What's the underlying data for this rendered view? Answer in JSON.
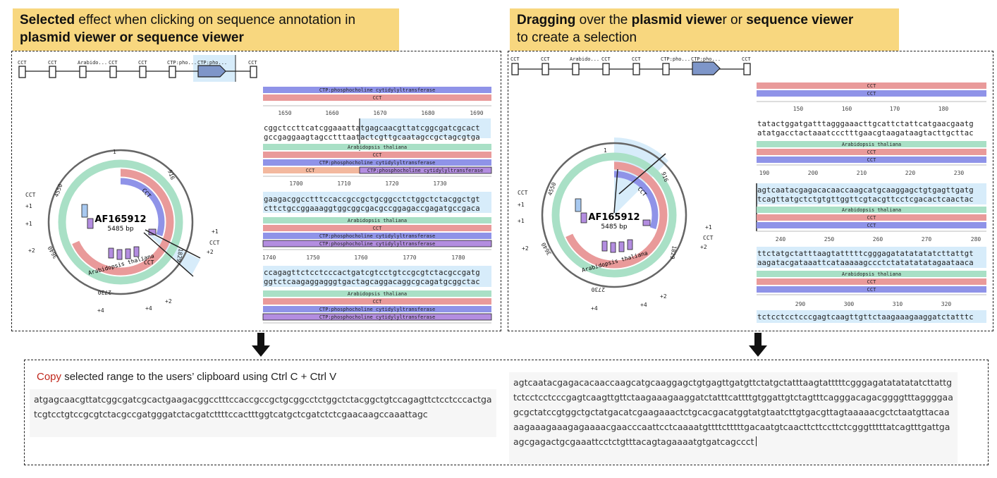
{
  "left_banner": {
    "bold1": "Selected",
    "rest1": " effect when clicking on sequence annotation in",
    "bold2": "plasmid viewer or sequence viewer"
  },
  "right_banner": {
    "bold1": "Dragging",
    "rest1": " over the ",
    "bold2": "plasmid viewe",
    "rest2": "r or ",
    "bold3": "sequence viewer",
    "line2": "to create a selection"
  },
  "linear_map": {
    "labels": [
      "CCT",
      "CCT",
      "Arabido...",
      "CCT",
      "CCT",
      "CTP:pho...",
      "CTP:pho...",
      "CCT"
    ]
  },
  "circular_left": {
    "name": "AF165912",
    "length": "5485 bp",
    "ticks": [
      "1",
      "916",
      "1829",
      "2730",
      "3640",
      "4550"
    ],
    "feature_labels": [
      "CCT",
      "Arabidopsis thaliana",
      "CCT"
    ],
    "left_labels": [
      "CCT",
      "+1",
      "+1",
      "+2",
      "+4",
      "+4",
      "+2"
    ],
    "right_labels": [
      "+1",
      "CCT",
      "+2"
    ]
  },
  "circular_right": {
    "name": "AF165912",
    "length": "5485 bp",
    "ticks": [
      "1",
      "916",
      "1829",
      "2730",
      "3640",
      "4550"
    ],
    "feature_labels": [
      "CCT",
      "Arabidopsis thaliana"
    ],
    "left_labels": [
      "CCT",
      "+1",
      "+1",
      "+2",
      "+4",
      "+4",
      "+2"
    ],
    "right_labels": [
      "+1",
      "CCT",
      "+2"
    ]
  },
  "seq_left": {
    "top_feat1": "CTP:phosphocholine cytidylyltransferase",
    "top_feat2": "CCT",
    "ruler1": [
      "1650",
      "1660",
      "1670",
      "1680",
      "1690"
    ],
    "row1_top": "cggctccttcatcggaaattatgagcaacgttatcggcgatcgcact",
    "row1_bot": "gccgaggaagtagcctttaatactcgttgcaatagccgctagcgtga",
    "feat_arab": "Arabidopsis thaliana",
    "feat_cct": "CCT",
    "feat_ctp": "CTP:phosphocholine cytidylyltransferase",
    "ruler2": [
      "1700",
      "1710",
      "1720",
      "1730"
    ],
    "row2_top": "gaagacggcctttccaccgccgctgcggcctctggctctacggctgt",
    "row2_bot": "cttctgccggaaaggtggcggcgacgccggagaccgagatgccgaca",
    "ruler3": [
      "1740",
      "1750",
      "1760",
      "1770",
      "1780"
    ],
    "row3_top": "ccagagttctcctcccactgatcgtcctgtccgcgtctacgccgatg",
    "row3_bot": "ggtctcaagaggagggtgactagcaggacaggcgcagatgcggctac"
  },
  "seq_right": {
    "feat_cct": "CCT",
    "feat_arab": "Arabidopsis thaliana",
    "ruler1": [
      "150",
      "160",
      "170",
      "180"
    ],
    "row1_top": "tatactggatgatttagggaaacttgcattctattcatgaacgaatg",
    "row1_bot": "atatgacctactaaatccctttgaacgtaagataagtacttgcttac",
    "ruler2": [
      "190",
      "200",
      "210",
      "220",
      "230"
    ],
    "row2_top": "agtcaatacgagacacaaccaagcatgcaaggagctgtgagttgatg",
    "row2_bot": "tcagttatgctctgtgttggttcgtacgttcctcgacactcaactac",
    "ruler3": [
      "240",
      "250",
      "260",
      "270",
      "280"
    ],
    "row3_top": "ttctatgctatttaagtatttttcgggagatatatatatcttattgt",
    "row3_bot": "aagatacgataaattcataaaaagccctctatatatatagaataaca",
    "ruler4": [
      "290",
      "300",
      "310",
      "320"
    ],
    "row4_top": "tctcctcctcccgagtcaagttgttctaagaaagaaggatctatttc"
  },
  "copy": {
    "word": "Copy",
    "rest": " selected range to the users’ clipboard using Ctrl C + Ctrl V",
    "left_text": "atgagcaacgttatcggcgatcgcactgaagacggcctttccaccgccgctgcggcctctggctctacggctgtccagagttctcctcccactgatcgtcctgtccgcgtctacgccgatgggatctacgatcttttccactttggtcatgctcgatctctcgaacaagccaaattagc",
    "right_text": "agtcaatacgagacacaaccaagcatgcaaggagctgtgagttgatgttctatgctatttaagtatttttcgggagatatatatatcttattgtctcctcctcccgagtcaagttgttctaagaaagaaggatctatttcattttgtggattgtctagtttcagggacagacggggtttaggggaagcgctatccgtggctgctatgacatcgaagaaactctgcacgacatggtatgtaatcttgtgacgttagtaaaaacgctctaatgttacaaaagaaagaaagagaaaacgaacccaattcctcaaaatgttttctttttgacaatgtcaacttcttccttctcgggtttttatcagtttgattgaagcgagactgcgaaattcctctgtttacagtagaaaatgtgatcagccct"
  },
  "colors": {
    "banner": "#f8d77f",
    "cct": "#e99a9a",
    "ctp": "#8f93e8",
    "arab": "#a9e0c6",
    "selection": "#d7ecfa"
  }
}
